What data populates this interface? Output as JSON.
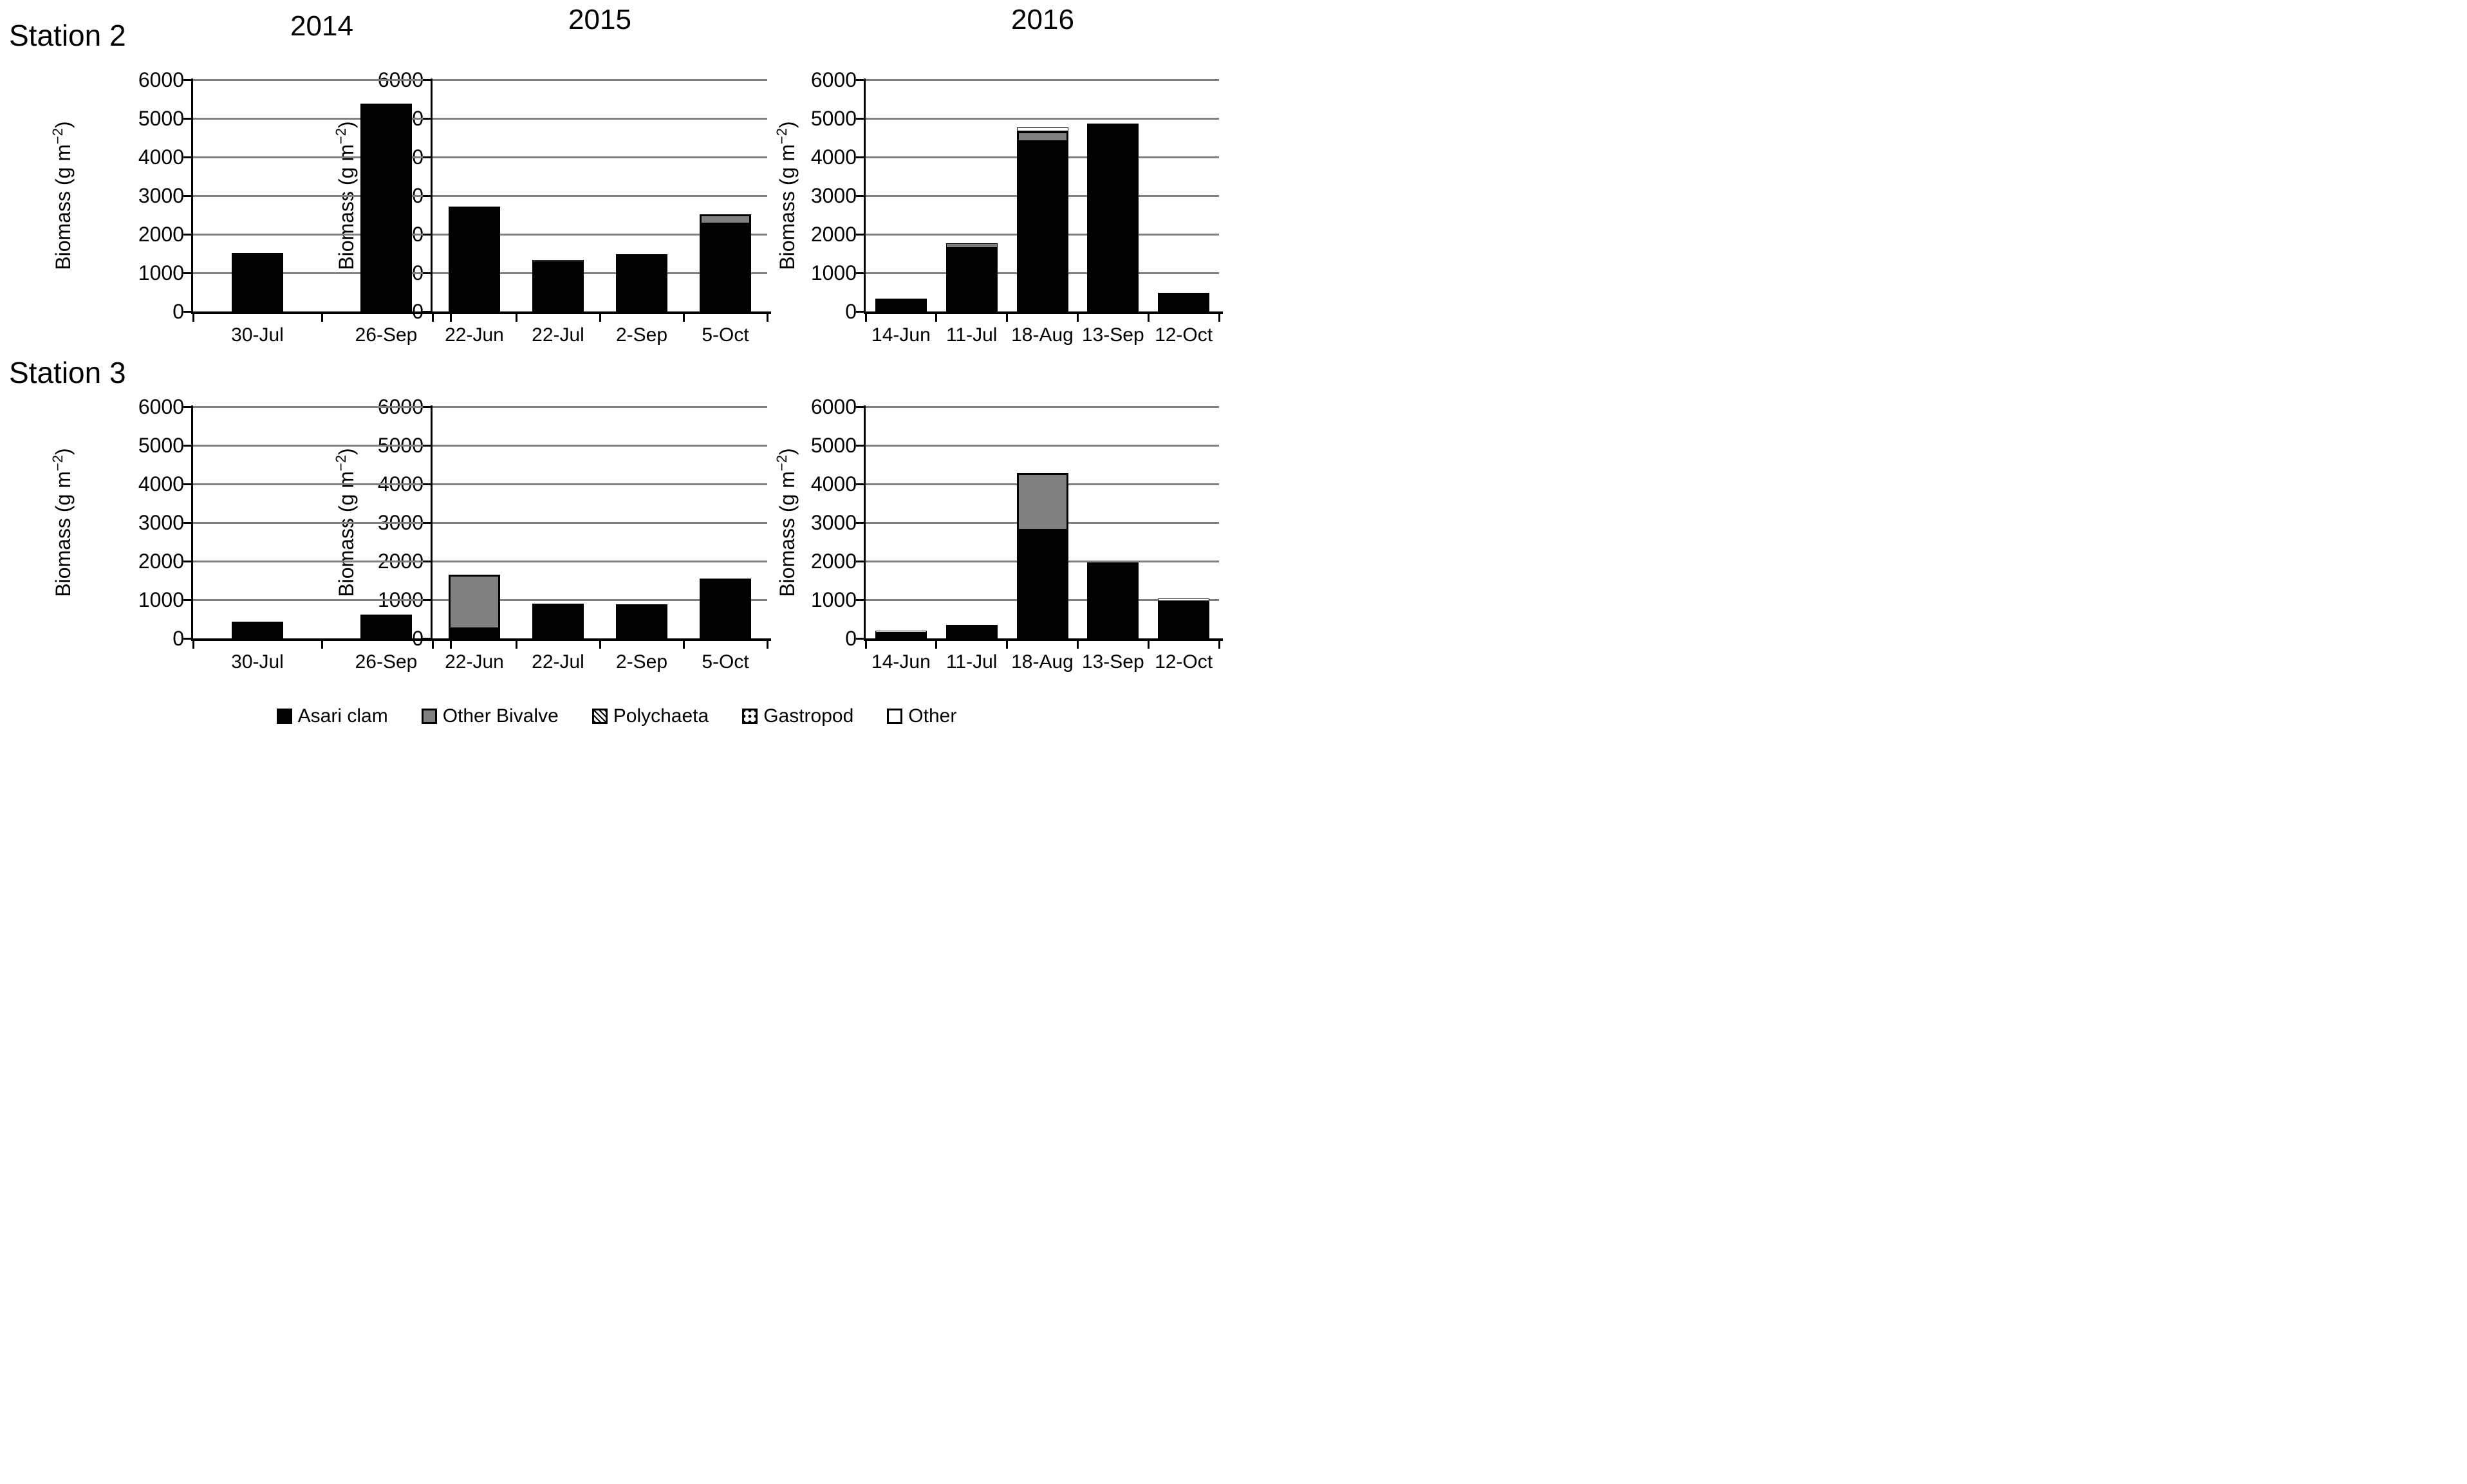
{
  "figure": {
    "background": "#ffffff",
    "stations": [
      "Station 2",
      "Station 3"
    ],
    "years": [
      "2014",
      "2015",
      "2016"
    ]
  },
  "y_axis": {
    "label_pre": "Biomass  (g m",
    "label_sup": "−2",
    "label_post": ")",
    "min": 0,
    "max": 6000,
    "tick_step": 1000,
    "tick_labels": [
      "0",
      "1000",
      "2000",
      "3000",
      "4000",
      "5000",
      "6000"
    ],
    "grid": true
  },
  "colors": {
    "asari": "#000000",
    "other_bivalve": "#808080",
    "gridline": "#808080",
    "axis": "#000000",
    "background": "#ffffff"
  },
  "legend": [
    {
      "key": "asari",
      "label": "Asari clam"
    },
    {
      "key": "other_bivalve",
      "label": "Other Bivalve"
    },
    {
      "key": "polychaeta",
      "label": "Polychaeta"
    },
    {
      "key": "gastropod",
      "label": "Gastropod"
    },
    {
      "key": "other",
      "label": "Other"
    }
  ],
  "chart_data": [
    {
      "type": "bar",
      "stacked": true,
      "station": "Station 2",
      "year": "2014",
      "ylabel": "Biomass (g m-2)",
      "ylim": [
        0,
        6000
      ],
      "categories": [
        "30-Jul",
        "26-Sep"
      ],
      "series": [
        {
          "key": "asari",
          "name": "Asari clam",
          "values": [
            1520,
            5390
          ]
        }
      ]
    },
    {
      "type": "bar",
      "stacked": true,
      "station": "Station 2",
      "year": "2015",
      "ylabel": "Biomass (g m-2)",
      "ylim": [
        0,
        6000
      ],
      "categories": [
        "22-Jun",
        "22-Jul",
        "2-Sep",
        "5-Oct"
      ],
      "series": [
        {
          "key": "asari",
          "name": "Asari clam",
          "values": [
            2720,
            1280,
            1480,
            2250
          ]
        },
        {
          "key": "other_bivalve",
          "name": "Other Bivalve",
          "values": [
            0,
            50,
            0,
            270
          ]
        }
      ]
    },
    {
      "type": "bar",
      "stacked": true,
      "station": "Station 2",
      "year": "2016",
      "ylabel": "Biomass (g m-2)",
      "ylim": [
        0,
        6000
      ],
      "categories": [
        "14-Jun",
        "11-Jul",
        "18-Aug",
        "13-Sep",
        "12-Oct"
      ],
      "series": [
        {
          "key": "asari",
          "name": "Asari clam",
          "values": [
            330,
            1650,
            4380,
            4860,
            480
          ]
        },
        {
          "key": "other_bivalve",
          "name": "Other Bivalve",
          "values": [
            0,
            120,
            280,
            0,
            0
          ]
        },
        {
          "key": "gastropod",
          "name": "Gastropod",
          "values": [
            0,
            0,
            100,
            0,
            0
          ]
        }
      ]
    },
    {
      "type": "bar",
      "stacked": true,
      "station": "Station 3",
      "year": "2014",
      "ylabel": "Biomass (g m-2)",
      "ylim": [
        0,
        6000
      ],
      "categories": [
        "30-Jul",
        "26-Sep"
      ],
      "series": [
        {
          "key": "asari",
          "name": "Asari clam",
          "values": [
            430,
            620
          ]
        }
      ]
    },
    {
      "type": "bar",
      "stacked": true,
      "station": "Station 3",
      "year": "2015",
      "ylabel": "Biomass (g m-2)",
      "ylim": [
        0,
        6000
      ],
      "categories": [
        "22-Jun",
        "22-Jul",
        "2-Sep",
        "5-Oct"
      ],
      "series": [
        {
          "key": "asari",
          "name": "Asari clam",
          "values": [
            230,
            900,
            880,
            1550
          ]
        },
        {
          "key": "other_bivalve",
          "name": "Other Bivalve",
          "values": [
            1420,
            0,
            0,
            0
          ]
        }
      ]
    },
    {
      "type": "bar",
      "stacked": true,
      "station": "Station 3",
      "year": "2016",
      "ylabel": "Biomass (g m-2)",
      "ylim": [
        0,
        6000
      ],
      "categories": [
        "14-Jun",
        "11-Jul",
        "18-Aug",
        "13-Sep",
        "12-Oct"
      ],
      "series": [
        {
          "key": "asari",
          "name": "Asari clam",
          "values": [
            150,
            350,
            2780,
            1960,
            960
          ]
        },
        {
          "key": "other_bivalve",
          "name": "Other Bivalve",
          "values": [
            0,
            0,
            1500,
            0,
            0
          ]
        },
        {
          "key": "gastropod",
          "name": "Gastropod",
          "values": [
            50,
            0,
            0,
            0,
            80
          ]
        }
      ]
    }
  ]
}
